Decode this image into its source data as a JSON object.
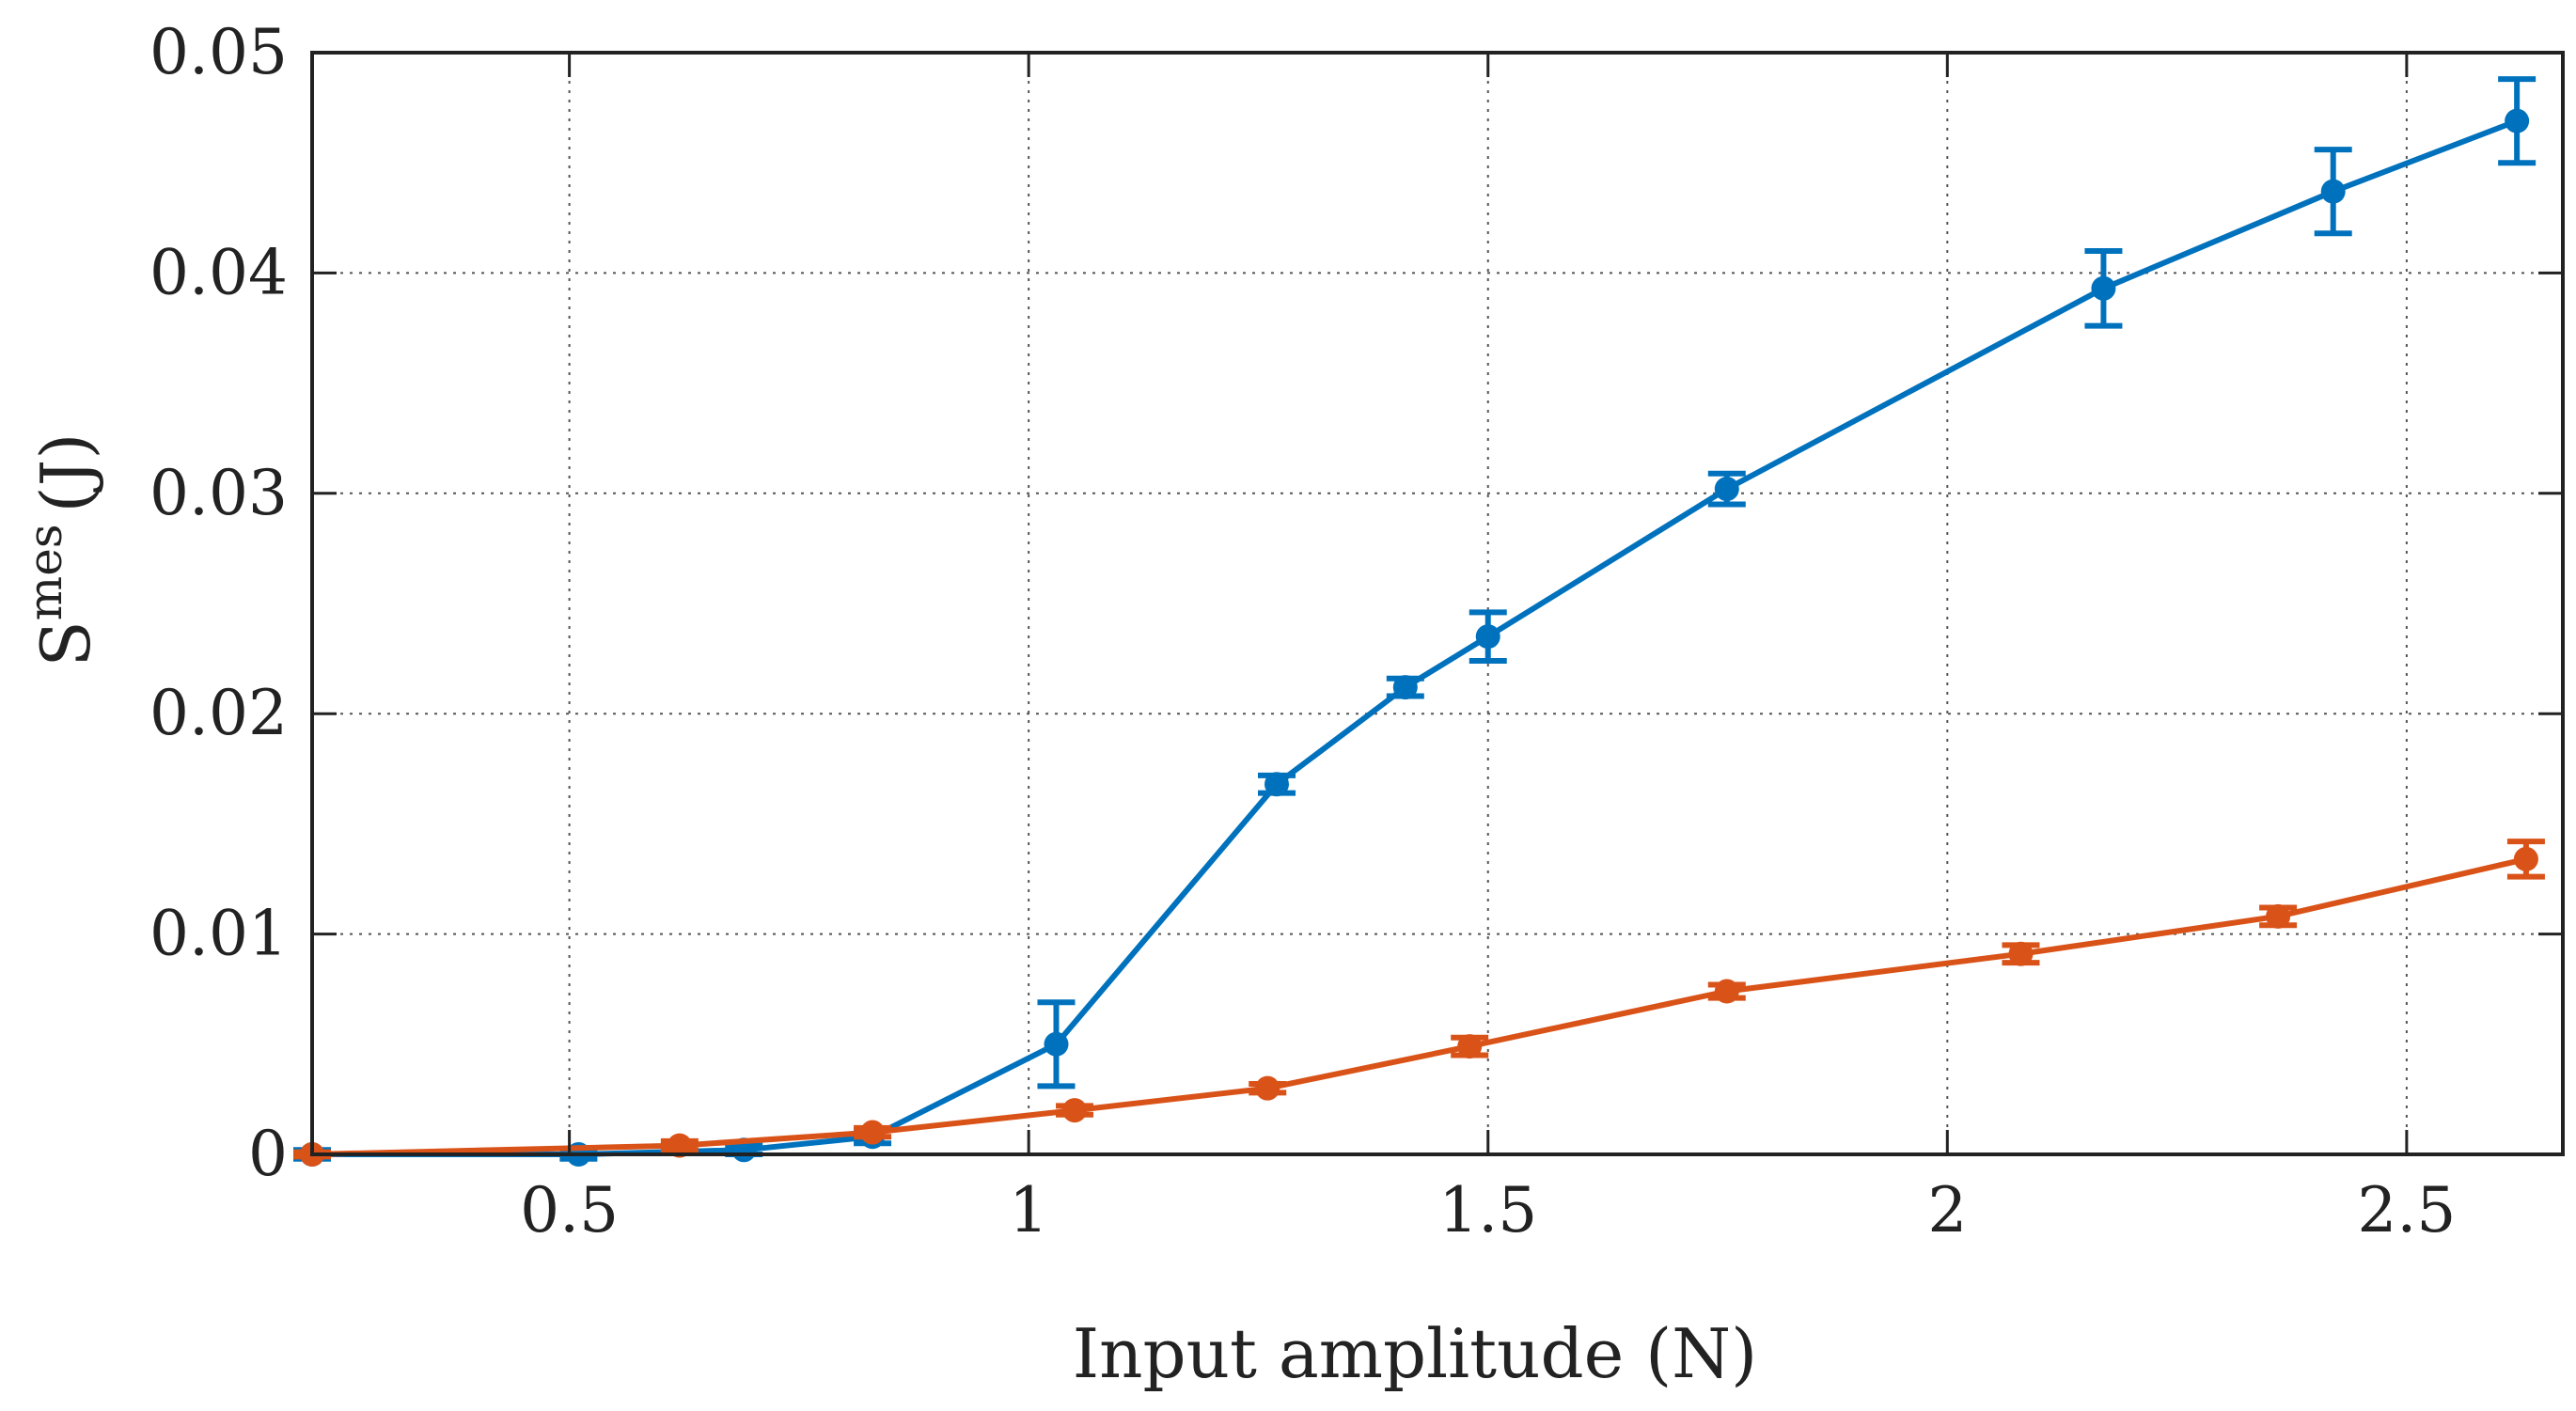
{
  "chart_data": {
    "type": "line",
    "title": "",
    "xlabel": "Input amplitude (N)",
    "ylabel": {
      "base": "S",
      "superscript": "mes",
      "unit": "(J)"
    },
    "xlim": [
      0.22,
      2.67
    ],
    "ylim": [
      0,
      0.05
    ],
    "xticks": [
      0.5,
      1,
      1.5,
      2,
      2.5
    ],
    "xtick_labels": [
      "0.5",
      "1",
      "1.5",
      "2",
      "2.5"
    ],
    "yticks": [
      0,
      0.01,
      0.02,
      0.03,
      0.04,
      0.05
    ],
    "ytick_labels": [
      "0",
      "0.01",
      "0.02",
      "0.03",
      "0.04",
      "0.05"
    ],
    "grid": true,
    "series": [
      {
        "name": "series-blue",
        "color": "#0072BD",
        "x": [
          0.22,
          0.51,
          0.69,
          0.83,
          1.03,
          1.27,
          1.41,
          1.5,
          1.76,
          2.17,
          2.42,
          2.62
        ],
        "y": [
          0.0,
          0.0,
          0.0002,
          0.0008,
          0.005,
          0.0168,
          0.0212,
          0.0235,
          0.0302,
          0.0393,
          0.0437,
          0.0469
        ],
        "err": [
          0.0002,
          0.0002,
          0.0002,
          0.0003,
          0.0019,
          0.0004,
          0.0004,
          0.0011,
          0.0007,
          0.0017,
          0.0019,
          0.0019
        ]
      },
      {
        "name": "series-orange",
        "color": "#D95319",
        "x": [
          0.22,
          0.62,
          0.83,
          1.05,
          1.26,
          1.48,
          1.76,
          2.08,
          2.36,
          2.63
        ],
        "y": [
          0.0,
          0.0004,
          0.001,
          0.002,
          0.003,
          0.0049,
          0.0074,
          0.0091,
          0.0108,
          0.0134
        ],
        "err": [
          0.0001,
          0.0002,
          0.0002,
          0.0002,
          0.0002,
          0.0004,
          0.0003,
          0.0004,
          0.0004,
          0.0008
        ]
      }
    ]
  }
}
